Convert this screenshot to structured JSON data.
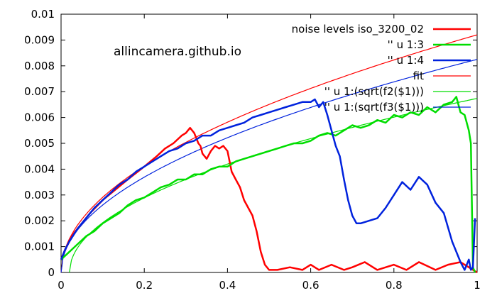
{
  "chart_data": {
    "type": "line",
    "title": "",
    "xlabel": "",
    "ylabel": "",
    "xlim": [
      0,
      1
    ],
    "ylim": [
      0,
      0.01
    ],
    "x_ticks": [
      "0",
      "0.2",
      "0.4",
      "0.6",
      "0.8",
      "1"
    ],
    "y_ticks": [
      "0",
      "0.001",
      "0.002",
      "0.003",
      "0.004",
      "0.005",
      "0.006",
      "0.007",
      "0.008",
      "0.009",
      "0.01"
    ],
    "x_tick_values": [
      0,
      0.2,
      0.4,
      0.6,
      0.8,
      1
    ],
    "y_tick_values": [
      0,
      0.001,
      0.002,
      0.003,
      0.004,
      0.005,
      0.006,
      0.007,
      0.008,
      0.009,
      0.01
    ],
    "grid": false,
    "legend_position": "top-right",
    "annotation": "allincamera.github.io",
    "series": [
      {
        "name": "noise levels iso_3200_02",
        "color": "#ff0000",
        "width": 2.5,
        "kind": "data",
        "x": [
          0,
          0.01,
          0.02,
          0.03,
          0.05,
          0.07,
          0.1,
          0.13,
          0.16,
          0.2,
          0.23,
          0.25,
          0.27,
          0.29,
          0.3,
          0.31,
          0.32,
          0.325,
          0.33,
          0.335,
          0.34,
          0.35,
          0.36,
          0.37,
          0.38,
          0.39,
          0.4,
          0.41,
          0.42,
          0.43,
          0.44,
          0.45,
          0.46,
          0.47,
          0.48,
          0.49,
          0.5,
          0.52,
          0.55,
          0.58,
          0.6,
          0.62,
          0.65,
          0.68,
          0.7,
          0.73,
          0.76,
          0.8,
          0.83,
          0.86,
          0.9,
          0.93,
          0.96,
          0.98,
          1.0
        ],
        "y": [
          0.0005,
          0.0009,
          0.0012,
          0.0015,
          0.0019,
          0.0023,
          0.0028,
          0.0032,
          0.0036,
          0.0041,
          0.0045,
          0.0048,
          0.005,
          0.0053,
          0.0054,
          0.0056,
          0.0054,
          0.0052,
          0.005,
          0.0049,
          0.0046,
          0.0044,
          0.0047,
          0.0049,
          0.0048,
          0.0049,
          0.0047,
          0.0039,
          0.0036,
          0.0033,
          0.0028,
          0.0025,
          0.0022,
          0.0016,
          0.0008,
          0.0003,
          0.0001,
          0.0001,
          0.0002,
          0.0001,
          0.0003,
          0.0001,
          0.0003,
          0.0001,
          0.0002,
          0.0004,
          0.0001,
          0.0003,
          0.0001,
          0.0004,
          0.0001,
          0.0003,
          0.0004,
          0.0002,
          0
        ]
      },
      {
        "name": "'' u 1:3",
        "color": "#00dd00",
        "width": 2.5,
        "kind": "data",
        "x": [
          0,
          0.02,
          0.04,
          0.06,
          0.08,
          0.1,
          0.12,
          0.14,
          0.16,
          0.18,
          0.2,
          0.22,
          0.24,
          0.26,
          0.28,
          0.3,
          0.32,
          0.34,
          0.36,
          0.38,
          0.4,
          0.42,
          0.44,
          0.46,
          0.48,
          0.5,
          0.52,
          0.54,
          0.56,
          0.58,
          0.6,
          0.62,
          0.64,
          0.66,
          0.68,
          0.7,
          0.72,
          0.74,
          0.76,
          0.78,
          0.8,
          0.82,
          0.84,
          0.86,
          0.88,
          0.9,
          0.92,
          0.94,
          0.95,
          0.96,
          0.97,
          0.98,
          0.985,
          0.99,
          0.995
        ],
        "y": [
          0.0005,
          0.0008,
          0.0011,
          0.0014,
          0.0016,
          0.0019,
          0.0021,
          0.0023,
          0.0026,
          0.0028,
          0.0029,
          0.0031,
          0.0033,
          0.0034,
          0.0036,
          0.0036,
          0.0038,
          0.0038,
          0.004,
          0.0041,
          0.0041,
          0.0043,
          0.0044,
          0.0045,
          0.0046,
          0.0047,
          0.0048,
          0.0049,
          0.005,
          0.005,
          0.0051,
          0.0053,
          0.0054,
          0.0053,
          0.0055,
          0.0057,
          0.0056,
          0.0057,
          0.0059,
          0.0058,
          0.0061,
          0.006,
          0.0062,
          0.0061,
          0.0064,
          0.0062,
          0.0065,
          0.0066,
          0.0068,
          0.0062,
          0.0061,
          0.0055,
          0.005,
          0.0002,
          0
        ]
      },
      {
        "name": "'' u 1:4",
        "color": "#0022dd",
        "width": 2.5,
        "kind": "data",
        "x": [
          0,
          0.01,
          0.02,
          0.04,
          0.06,
          0.08,
          0.1,
          0.12,
          0.14,
          0.16,
          0.18,
          0.2,
          0.22,
          0.24,
          0.26,
          0.28,
          0.3,
          0.32,
          0.34,
          0.36,
          0.38,
          0.4,
          0.42,
          0.44,
          0.46,
          0.48,
          0.5,
          0.52,
          0.54,
          0.56,
          0.58,
          0.6,
          0.61,
          0.62,
          0.63,
          0.64,
          0.65,
          0.66,
          0.67,
          0.68,
          0.69,
          0.7,
          0.71,
          0.72,
          0.74,
          0.76,
          0.78,
          0.8,
          0.82,
          0.84,
          0.86,
          0.88,
          0.9,
          0.92,
          0.94,
          0.96,
          0.97,
          0.98,
          0.985,
          0.99,
          0.995
        ],
        "y": [
          0.0005,
          0.0009,
          0.0012,
          0.0017,
          0.0021,
          0.0025,
          0.0028,
          0.0031,
          0.0034,
          0.0036,
          0.0039,
          0.0041,
          0.0043,
          0.0045,
          0.0047,
          0.0048,
          0.005,
          0.0051,
          0.0053,
          0.0053,
          0.0055,
          0.0056,
          0.0057,
          0.0058,
          0.006,
          0.0061,
          0.0062,
          0.0063,
          0.0064,
          0.0065,
          0.0066,
          0.0066,
          0.0067,
          0.0064,
          0.0066,
          0.0061,
          0.0055,
          0.0049,
          0.0045,
          0.0036,
          0.0028,
          0.0022,
          0.0019,
          0.0019,
          0.002,
          0.0021,
          0.0025,
          0.003,
          0.0035,
          0.0032,
          0.0037,
          0.0034,
          0.0027,
          0.0023,
          0.0012,
          0.0004,
          0.0001,
          0.0005,
          0.0001,
          0.0002,
          0.0021
        ]
      },
      {
        "name": "fit",
        "color": "#ff0000",
        "width": 1.2,
        "kind": "fit",
        "a": 0.0092,
        "x0": 0
      },
      {
        "name": "'' u 1:(sqrt(f2($1)))",
        "color": "#00dd00",
        "width": 1.2,
        "kind": "fit",
        "a": 0.00674,
        "x0": 0.02
      },
      {
        "name": "'' u 1:(sqrt(f3($1)))",
        "color": "#0022dd",
        "width": 1.2,
        "kind": "fit",
        "a": 0.00825,
        "x0": 0
      }
    ]
  }
}
